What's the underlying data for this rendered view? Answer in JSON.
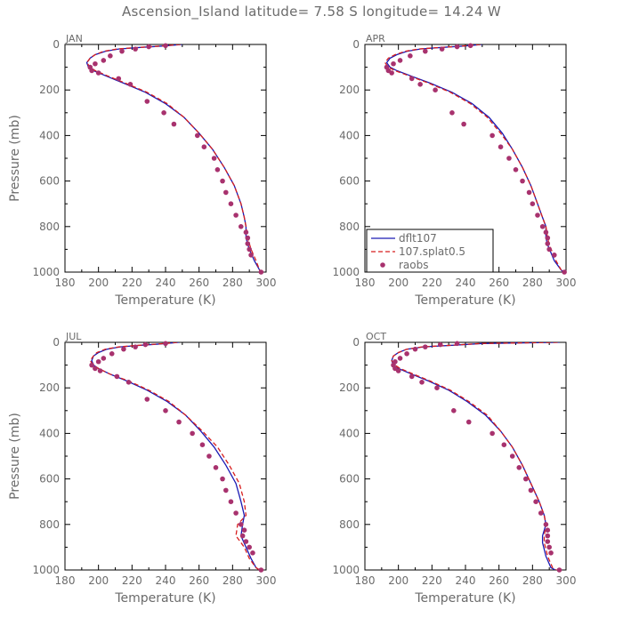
{
  "title": "Ascension_Island   latitude= 7.58 S longitude= 14.24 W",
  "colors": {
    "dflt107": "#1a1ab4",
    "splat": "#d81e1e",
    "raobs": "#a8326e",
    "axis": "#000000",
    "text": "#6b6b6b"
  },
  "legend": {
    "items": [
      {
        "label": "dflt107",
        "style": "solid"
      },
      {
        "label": "107.splat0.5",
        "style": "dashed"
      },
      {
        "label": "raobs",
        "style": "marker"
      }
    ]
  },
  "chart_data": [
    {
      "type": "line",
      "panel": "JAN",
      "xlabel": "Temperature (K)",
      "ylabel": "Pressure (mb)",
      "xlim": [
        180,
        300
      ],
      "ylim": [
        1000,
        0
      ],
      "xticks": [
        180,
        200,
        220,
        240,
        260,
        280,
        300
      ],
      "yticks": [
        0,
        200,
        400,
        600,
        800,
        1000
      ],
      "series": [
        {
          "name": "dflt107",
          "x": [
            250,
            238,
            225,
            212,
            204,
            198,
            195,
            193,
            194,
            197,
            205,
            215,
            228,
            240,
            251,
            260,
            268,
            275,
            281,
            285,
            287,
            288,
            288,
            290,
            293,
            296,
            298
          ],
          "y": [
            0,
            7,
            13,
            20,
            30,
            45,
            60,
            80,
            100,
            115,
            140,
            170,
            210,
            260,
            320,
            390,
            460,
            540,
            620,
            700,
            760,
            800,
            850,
            900,
            950,
            990,
            1005
          ]
        },
        {
          "name": "107.splat0.5",
          "x": [
            249,
            237,
            224,
            211,
            203,
            198,
            195,
            193,
            195,
            198,
            206,
            216,
            229,
            241,
            251,
            260,
            268,
            275,
            281,
            285,
            287,
            288,
            289,
            291,
            294,
            296,
            298
          ],
          "y": [
            0,
            7,
            13,
            20,
            30,
            45,
            60,
            80,
            100,
            115,
            140,
            170,
            210,
            260,
            320,
            390,
            460,
            540,
            620,
            700,
            760,
            800,
            850,
            900,
            950,
            990,
            1005
          ]
        },
        {
          "name": "raobs",
          "x": [
            240,
            230,
            222,
            214,
            207,
            203,
            198,
            195,
            196,
            200,
            212,
            219,
            229,
            239,
            245,
            259,
            263,
            269,
            271,
            274,
            276,
            279,
            282,
            285,
            288,
            289,
            289,
            290,
            291,
            297
          ],
          "y": [
            5,
            10,
            20,
            30,
            50,
            70,
            85,
            100,
            115,
            125,
            150,
            175,
            250,
            300,
            350,
            400,
            450,
            500,
            550,
            600,
            650,
            700,
            750,
            800,
            825,
            850,
            875,
            900,
            925,
            1000
          ]
        }
      ]
    },
    {
      "type": "line",
      "panel": "APR",
      "xlabel": "Temperature (K)",
      "ylabel": "",
      "xlim": [
        180,
        300
      ],
      "ylim": [
        1000,
        0
      ],
      "xticks": [
        180,
        200,
        220,
        240,
        260,
        280,
        300
      ],
      "yticks": [
        0,
        200,
        400,
        600,
        800,
        1000
      ],
      "series": [
        {
          "name": "dflt107",
          "x": [
            250,
            239,
            226,
            213,
            205,
            199,
            195,
            193,
            195,
            199,
            208,
            219,
            232,
            244,
            254,
            262,
            268,
            274,
            279,
            283,
            286,
            288,
            288,
            289,
            293,
            297,
            299
          ],
          "y": [
            0,
            7,
            13,
            20,
            30,
            45,
            60,
            80,
            100,
            115,
            140,
            170,
            210,
            260,
            320,
            390,
            460,
            540,
            620,
            700,
            760,
            800,
            850,
            880,
            950,
            990,
            1005
          ]
        },
        {
          "name": "107.splat0.5",
          "x": [
            249,
            238,
            225,
            212,
            204,
            198,
            194,
            192,
            194,
            198,
            207,
            218,
            231,
            243,
            253,
            261,
            268,
            274,
            279,
            283,
            286,
            288,
            289,
            290,
            294,
            297,
            299
          ],
          "y": [
            0,
            7,
            13,
            20,
            30,
            45,
            60,
            80,
            100,
            115,
            140,
            170,
            210,
            260,
            320,
            390,
            460,
            540,
            620,
            700,
            760,
            800,
            850,
            880,
            950,
            990,
            1005
          ]
        },
        {
          "name": "raobs",
          "x": [
            243,
            235,
            226,
            216,
            207,
            201,
            197,
            193,
            194,
            196,
            208,
            213,
            222,
            232,
            239,
            256,
            261,
            266,
            270,
            274,
            278,
            280,
            283,
            286,
            288,
            289,
            289,
            290,
            293,
            299
          ],
          "y": [
            5,
            10,
            20,
            30,
            50,
            70,
            85,
            100,
            115,
            125,
            150,
            175,
            200,
            300,
            350,
            400,
            450,
            500,
            550,
            600,
            650,
            700,
            750,
            800,
            825,
            850,
            875,
            900,
            925,
            1000
          ]
        }
      ]
    },
    {
      "type": "line",
      "panel": "JUL",
      "xlabel": "Temperature (K)",
      "ylabel": "Pressure (mb)",
      "xlim": [
        180,
        300
      ],
      "ylim": [
        1000,
        0
      ],
      "xticks": [
        180,
        200,
        220,
        240,
        260,
        280,
        300
      ],
      "yticks": [
        0,
        200,
        400,
        600,
        800,
        1000
      ],
      "series": [
        {
          "name": "dflt107",
          "x": [
            248,
            237,
            225,
            213,
            205,
            200,
            197,
            196,
            197,
            200,
            207,
            217,
            229,
            241,
            252,
            261,
            269,
            276,
            282,
            285,
            287,
            286,
            285,
            288,
            291,
            294,
            297
          ],
          "y": [
            0,
            7,
            13,
            20,
            30,
            45,
            60,
            80,
            100,
            115,
            140,
            170,
            210,
            260,
            320,
            390,
            460,
            540,
            620,
            700,
            760,
            800,
            850,
            900,
            950,
            990,
            1005
          ]
        },
        {
          "name": "107.splat0.5",
          "x": [
            247,
            236,
            224,
            212,
            204,
            199,
            197,
            195,
            197,
            200,
            207,
            218,
            230,
            242,
            252,
            262,
            271,
            278,
            284,
            287,
            288,
            283,
            282,
            287,
            290,
            294,
            297
          ],
          "y": [
            0,
            7,
            13,
            20,
            30,
            45,
            60,
            80,
            100,
            115,
            140,
            170,
            210,
            260,
            320,
            390,
            460,
            540,
            620,
            700,
            760,
            800,
            850,
            900,
            950,
            990,
            1005
          ]
        },
        {
          "name": "raobs",
          "x": [
            240,
            228,
            222,
            215,
            208,
            203,
            200,
            196,
            198,
            201,
            211,
            218,
            229,
            240,
            248,
            256,
            262,
            266,
            270,
            274,
            276,
            279,
            282,
            285,
            287,
            286,
            288,
            290,
            292,
            297
          ],
          "y": [
            5,
            10,
            20,
            30,
            50,
            70,
            85,
            100,
            115,
            125,
            150,
            175,
            250,
            300,
            350,
            400,
            450,
            500,
            550,
            600,
            650,
            700,
            750,
            800,
            825,
            850,
            875,
            900,
            925,
            1000
          ]
        }
      ]
    },
    {
      "type": "line",
      "panel": "OCT",
      "xlabel": "Temperature (K)",
      "ylabel": "",
      "xlim": [
        180,
        300
      ],
      "ylim": [
        1000,
        0
      ],
      "xticks": [
        180,
        200,
        220,
        240,
        260,
        280,
        300
      ],
      "yticks": [
        0,
        200,
        400,
        600,
        800,
        1000
      ],
      "series": [
        {
          "name": "dflt107",
          "x": [
            296,
            250,
            232,
            215,
            205,
            200,
            197,
            196,
            197,
            200,
            208,
            218,
            230,
            241,
            252,
            261,
            268,
            274,
            279,
            284,
            287,
            288,
            286,
            286,
            288,
            291,
            295
          ],
          "y": [
            0,
            5,
            13,
            20,
            30,
            45,
            60,
            80,
            100,
            115,
            140,
            170,
            210,
            260,
            320,
            390,
            460,
            540,
            620,
            700,
            760,
            800,
            850,
            880,
            940,
            990,
            1005
          ]
        },
        {
          "name": "107.splat0.5",
          "x": [
            295,
            249,
            231,
            214,
            205,
            200,
            197,
            196,
            198,
            201,
            209,
            219,
            231,
            242,
            253,
            261,
            268,
            274,
            279,
            284,
            287,
            288,
            287,
            287,
            289,
            292,
            295
          ],
          "y": [
            0,
            5,
            13,
            20,
            30,
            45,
            60,
            80,
            100,
            115,
            140,
            170,
            210,
            260,
            320,
            390,
            460,
            540,
            620,
            700,
            760,
            800,
            850,
            880,
            940,
            990,
            1005
          ]
        },
        {
          "name": "raobs",
          "x": [
            235,
            225,
            216,
            210,
            205,
            201,
            198,
            197,
            198,
            200,
            208,
            214,
            223,
            233,
            242,
            256,
            263,
            268,
            272,
            276,
            279,
            282,
            285,
            288,
            289,
            289,
            289,
            290,
            291,
            296
          ],
          "y": [
            5,
            10,
            20,
            30,
            50,
            70,
            85,
            100,
            115,
            125,
            150,
            175,
            200,
            300,
            350,
            400,
            450,
            500,
            550,
            600,
            650,
            700,
            750,
            800,
            825,
            850,
            875,
            900,
            925,
            1000
          ]
        }
      ]
    }
  ]
}
